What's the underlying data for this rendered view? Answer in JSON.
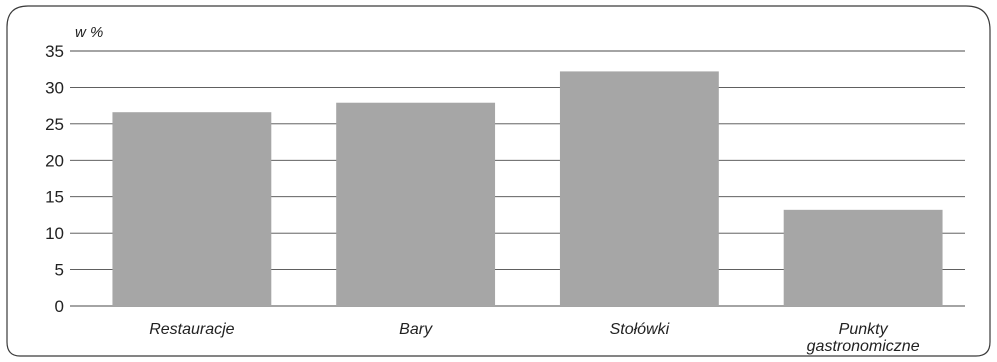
{
  "chart_data": {
    "type": "bar",
    "title": "",
    "xlabel": "",
    "ylabel": "w %",
    "ylim": [
      0,
      35
    ],
    "yticks": [
      0,
      5,
      10,
      15,
      20,
      25,
      30,
      35
    ],
    "ytick_labels": [
      "0",
      "5",
      "10",
      "15",
      "20",
      "25",
      "30",
      "35"
    ],
    "grid": true,
    "categories": [
      [
        "Restauracje"
      ],
      [
        "Bary"
      ],
      [
        "Stołówki"
      ],
      [
        "Punkty",
        "gastronomiczne"
      ]
    ],
    "values": [
      26.6,
      27.9,
      32.2,
      13.2
    ],
    "colors": {
      "bar": "#a6a6a6",
      "grid": "#4a4a4a"
    }
  }
}
